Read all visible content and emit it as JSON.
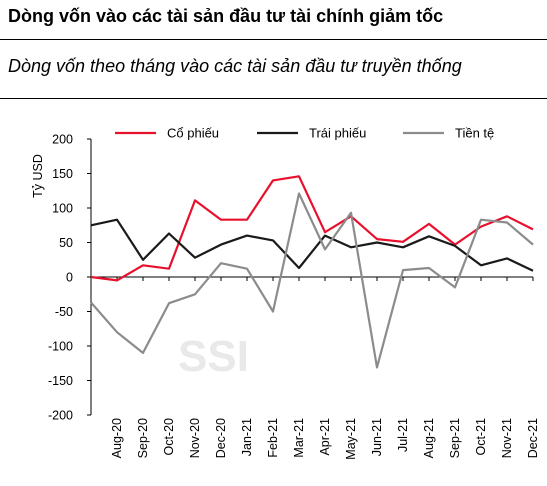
{
  "header": {
    "title": "Dòng vốn vào các tài sản đầu tư tài chính giảm tốc",
    "subtitle": "Dòng vốn theo tháng vào các tài sản đầu tư truyền thống"
  },
  "watermark": "SSI",
  "colors": {
    "co_phieu": "#e8112d",
    "trai_phieu": "#1a1a1a",
    "tien_te": "#8c8c8c"
  },
  "chart_data": {
    "type": "line",
    "title": "Dòng vốn theo tháng vào các tài sản đầu tư truyền thống",
    "ylabel": "Tỷ USD",
    "xlabel": "",
    "ylim": [
      -200,
      200
    ],
    "yticks": [
      "200",
      "150",
      "100",
      "50",
      "0",
      "-50",
      "-100",
      "-150",
      "-200"
    ],
    "legend_position": "top",
    "grid": false,
    "categories": [
      "Aug-20",
      "Sep-20",
      "Oct-20",
      "Nov-20",
      "Dec-20",
      "Jan-21",
      "Feb-21",
      "Mar-21",
      "Apr-21",
      "May-21",
      "Jun-21",
      "Jul-21",
      "Aug-21",
      "Sep-21",
      "Oct-21",
      "Nov-21",
      "Dec-21"
    ],
    "series": [
      {
        "name": "Cổ phiếu",
        "color": "#e8112d",
        "start": 0,
        "values": [
          -5,
          17,
          12,
          111,
          83,
          83,
          140,
          146,
          65,
          88,
          55,
          51,
          77,
          47,
          73,
          88,
          69
        ]
      },
      {
        "name": "Trái phiếu",
        "color": "#1a1a1a",
        "start": 75,
        "values": [
          83,
          25,
          63,
          28,
          47,
          60,
          53,
          13,
          60,
          43,
          50,
          43,
          59,
          45,
          17,
          27,
          9
        ]
      },
      {
        "name": "Tiền tệ",
        "color": "#8c8c8c",
        "start": -37,
        "values": [
          -80,
          -110,
          -38,
          -25,
          20,
          12,
          -50,
          121,
          40,
          93,
          -131,
          10,
          13,
          -15,
          83,
          79,
          47
        ]
      }
    ]
  }
}
